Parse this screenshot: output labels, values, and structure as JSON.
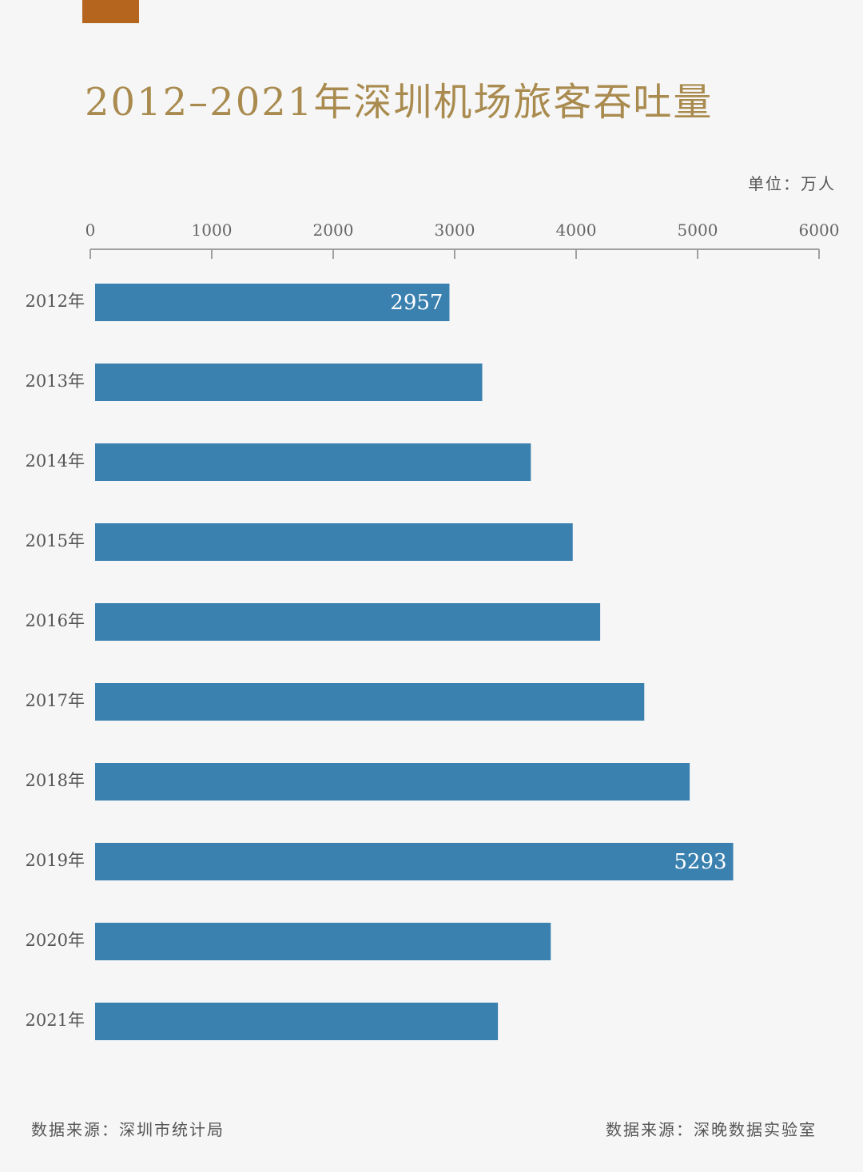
{
  "title": "2012–2021年深圳机场旅客吞吐量",
  "unit_label": "单位：万人",
  "source_left": "数据来源：深圳市统计局",
  "source_right": "数据来源：深晚数据实验室",
  "colors": {
    "accent": "#b5651d",
    "title": "#a98b4f",
    "bar": "#3a81b0",
    "axis": "#a0a0a0",
    "tick_label": "#666666",
    "category_label": "#555555",
    "data_label": "#ffffff"
  },
  "chart_data": {
    "type": "bar",
    "orientation": "horizontal",
    "title": "2012–2021年深圳机场旅客吞吐量",
    "xlabel": "单位：万人",
    "ylabel": "",
    "xlim": [
      0,
      6000
    ],
    "xticks": [
      0,
      1000,
      2000,
      3000,
      4000,
      5000,
      6000
    ],
    "categories": [
      "2012年",
      "2013年",
      "2014年",
      "2015年",
      "2016年",
      "2017年",
      "2018年",
      "2019年",
      "2020年",
      "2021年"
    ],
    "values": [
      2957,
      3227,
      3627,
      3972,
      4198,
      4561,
      4935,
      5293,
      3791,
      3356
    ],
    "data_labels": [
      {
        "category": "2012年",
        "text": "2957"
      },
      {
        "category": "2019年",
        "text": "5293"
      }
    ],
    "legend": "none",
    "grid": false
  }
}
